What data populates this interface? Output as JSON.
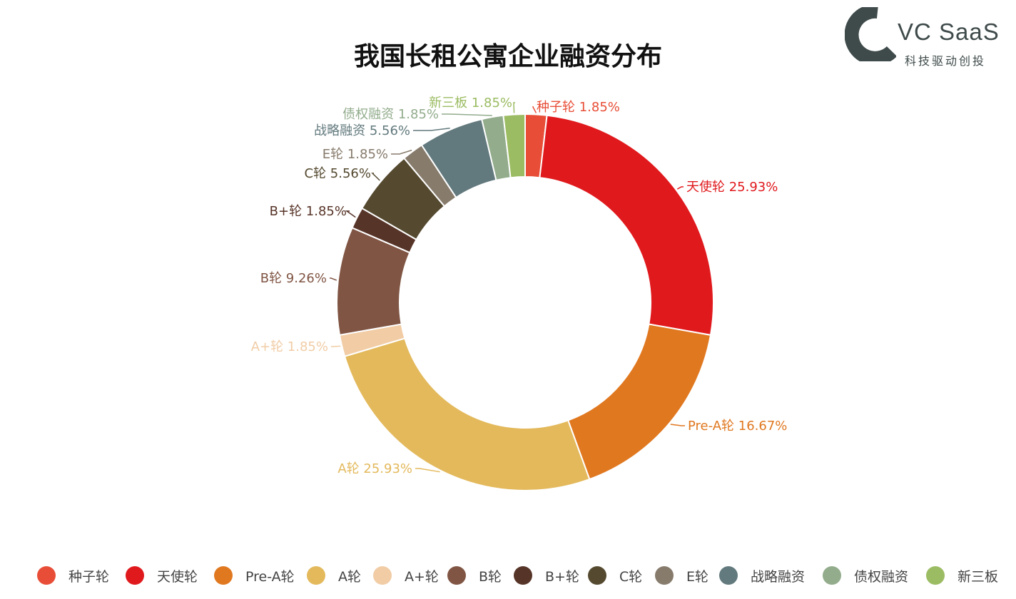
{
  "brand": {
    "name": "VC SaaS",
    "tagline": "科技驱动创投",
    "mark_color": "#3f4a4a"
  },
  "chart_data": {
    "type": "pie",
    "subtype": "donut",
    "title": "我国长租公寓企业融资分布",
    "unit": "%",
    "categories": [
      "种子轮",
      "天使轮",
      "Pre-A轮",
      "A轮",
      "A+轮",
      "B轮",
      "B+轮",
      "C轮",
      "E轮",
      "战略融资",
      "债权融资",
      "新三板"
    ],
    "values": [
      1.85,
      25.93,
      16.67,
      25.93,
      1.85,
      9.26,
      1.85,
      5.56,
      1.85,
      5.56,
      1.85,
      1.85
    ],
    "labels": [
      "种子轮 1.85%",
      "天使轮 25.93%",
      "Pre-A轮 16.67%",
      "A轮 25.93%",
      "A+轮 1.85%",
      "B轮 9.26%",
      "B+轮 1.85%",
      "C轮 5.56%",
      "E轮 1.85%",
      "战略融资 5.56%",
      "债权融资 1.85%",
      "新三板 1.85%"
    ],
    "colors": [
      "#e84e37",
      "#e0191d",
      "#e07820",
      "#e3b95c",
      "#f1cca5",
      "#805544",
      "#573428",
      "#554a30",
      "#877b6c",
      "#62797d",
      "#92ac8c",
      "#9bbc62"
    ],
    "legend_position": "bottom"
  }
}
